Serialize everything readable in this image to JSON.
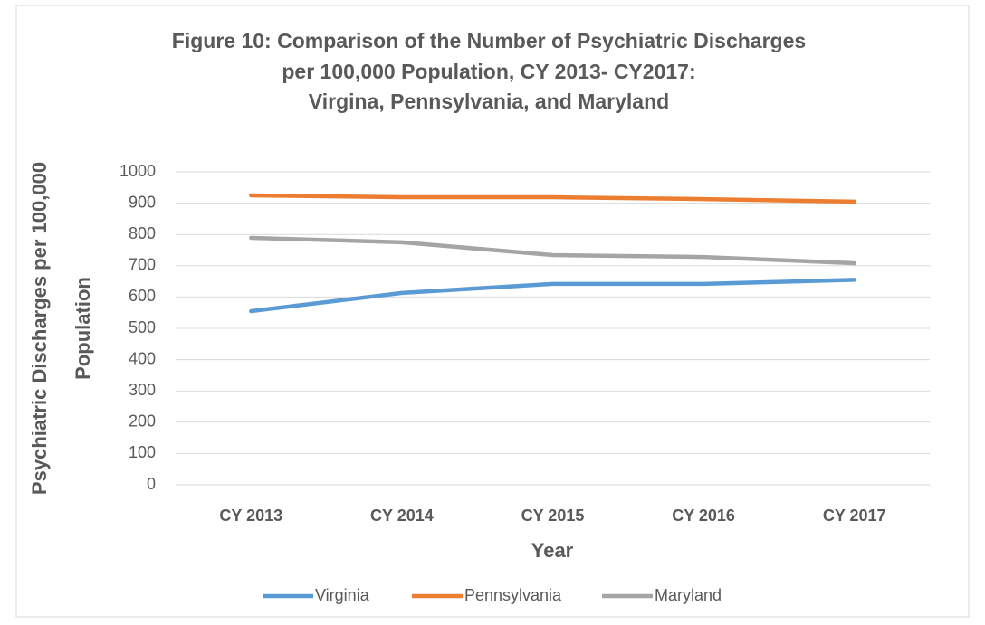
{
  "chart_data": {
    "type": "line",
    "title": [
      "Figure 10: Comparison of the Number of Psychiatric Discharges",
      "per 100,000 Population, CY 2013- CY2017:",
      "Virgina, Pennsylvania, and Maryland"
    ],
    "x_label": "Year",
    "y_label": [
      "Psychiatric Discharges per 100,000",
      "Population"
    ],
    "categories": [
      "CY 2013",
      "CY 2014",
      "CY 2015",
      "CY 2016",
      "CY 2017"
    ],
    "series": [
      {
        "name": "Virginia",
        "color": "#5b9bd5",
        "values": [
          555,
          613,
          642,
          642,
          655
        ]
      },
      {
        "name": "Pennsylvania",
        "color": "#ed7d31",
        "values": [
          925,
          919,
          919,
          913,
          905
        ]
      },
      {
        "name": "Maryland",
        "color": "#a5a5a5",
        "values": [
          789,
          775,
          734,
          728,
          708
        ]
      }
    ],
    "ylim": [
      0,
      1000
    ],
    "yticks": [
      0,
      100,
      200,
      300,
      400,
      500,
      600,
      700,
      800,
      900,
      1000
    ],
    "grid": true,
    "legend": "bottom"
  }
}
